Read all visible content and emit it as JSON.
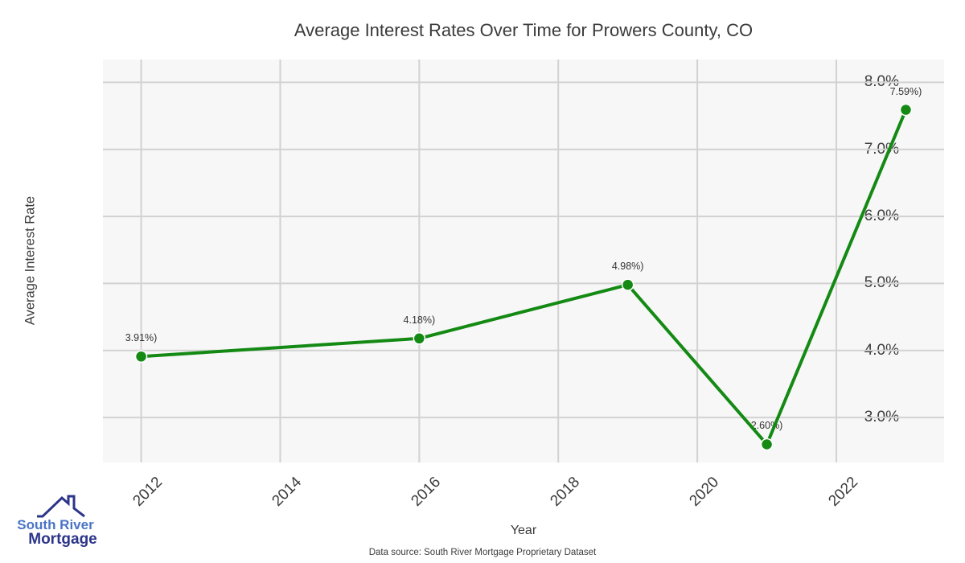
{
  "title": "Average Interest Rates Over Time for Prowers County, CO",
  "chart_data": {
    "type": "line",
    "title": "Average Interest Rates Over Time for Prowers County, CO",
    "x": [
      2012,
      2016,
      2019,
      2021,
      2023
    ],
    "y": [
      3.91,
      4.18,
      4.98,
      2.6,
      7.59
    ],
    "point_labels": [
      "3.91%)",
      "4.18%)",
      "4.98%)",
      "2.60%)",
      "7.59%)"
    ],
    "xlabel": "Year",
    "ylabel": "Average Interest Rate",
    "x_tick_values": [
      2012,
      2014,
      2016,
      2018,
      2020,
      2022
    ],
    "x_tick_labels": [
      "2012",
      "2014",
      "2016",
      "2018",
      "2020",
      "2022"
    ],
    "y_tick_values": [
      8.0,
      7.0,
      6.0,
      5.0,
      4.0,
      3.0
    ],
    "y_tick_labels": [
      "8.0%",
      "7.0%",
      "6.0%",
      "5.0%",
      "4.0%",
      "3.0%"
    ],
    "xlim": [
      2011.45,
      2023.55
    ],
    "ylim": [
      2.33,
      8.34
    ],
    "grid": true,
    "legend": "none",
    "line_color": "#148a14",
    "marker_color": "#148a14",
    "marker_edge_color": "#ffffff",
    "grid_color": "#d2d2d2",
    "plot_background": "#f7f7f7",
    "label_color": "#333333"
  },
  "footer": {
    "source_text": "Data source: South River Mortgage Proprietary Dataset"
  },
  "logo": {
    "line1": "South River",
    "line2": "Mortgage",
    "line1_color": "#4a74c4",
    "line2_color": "#2c3589"
  }
}
